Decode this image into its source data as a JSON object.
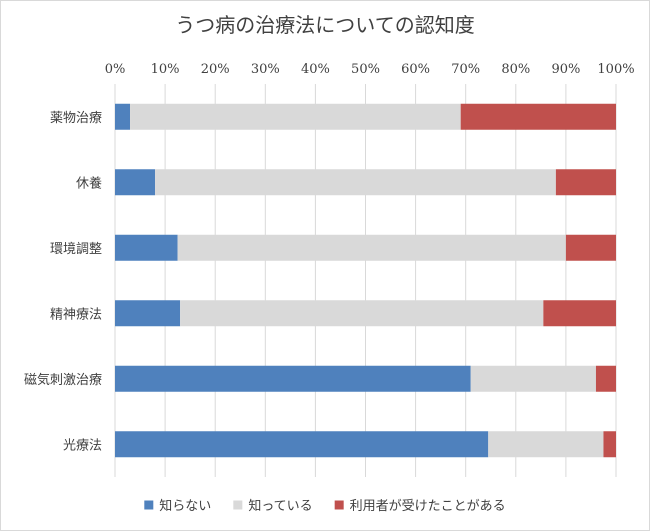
{
  "chart_data": {
    "type": "bar",
    "orientation": "horizontal",
    "stacked": "percent",
    "title": "うつ病の治療法についての認知度",
    "xlabel": "",
    "ylabel": "",
    "xlim": [
      0,
      100
    ],
    "x_ticks": [
      "0%",
      "10%",
      "20%",
      "30%",
      "40%",
      "50%",
      "60%",
      "70%",
      "80%",
      "90%",
      "100%"
    ],
    "categories": [
      "薬物治療",
      "休養",
      "環境調整",
      "精神療法",
      "磁気刺激治療",
      "光療法"
    ],
    "series": [
      {
        "name": "知らない",
        "color": "#4f81bd",
        "values": [
          3,
          8,
          12.5,
          13,
          71,
          74.5
        ]
      },
      {
        "name": "知っている",
        "color": "#d9d9d9",
        "values": [
          66,
          80,
          77.5,
          72.5,
          25,
          23
        ]
      },
      {
        "name": "利用者が受けたことがある",
        "color": "#c0504d",
        "values": [
          31,
          12,
          10,
          14.5,
          4,
          2.5
        ]
      }
    ],
    "grid": true,
    "legend_position": "bottom"
  }
}
